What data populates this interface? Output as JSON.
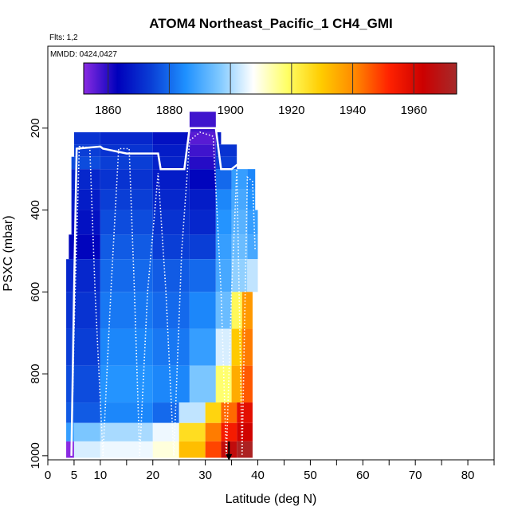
{
  "chart_data": {
    "type": "heatmap",
    "title": "ATOM4 Northeast_Pacific_1 CH4_GMI",
    "flights_label": "Flts: 1,2",
    "mmdd_label": "MMDD: 0424,0427",
    "xlabel": "Latitude (deg N)",
    "ylabel": "PSXC (mbar)",
    "xlim": [
      0,
      85
    ],
    "ylim": [
      1010,
      0
    ],
    "x_ticks": [
      {
        "value": 0,
        "label": "0"
      },
      {
        "value": 5,
        "label": "5"
      },
      {
        "value": 10,
        "label": "10"
      },
      {
        "value": 20,
        "label": "20"
      },
      {
        "value": 30,
        "label": "30"
      },
      {
        "value": 40,
        "label": "40"
      },
      {
        "value": 50,
        "label": "50"
      },
      {
        "value": 60,
        "label": "60"
      },
      {
        "value": 70,
        "label": "70"
      },
      {
        "value": 80,
        "label": "80"
      }
    ],
    "x_minor_ticks": [
      15,
      25,
      35,
      45,
      55,
      65,
      75,
      85
    ],
    "y_ticks": [
      {
        "value": 200,
        "label": "200"
      },
      {
        "value": 400,
        "label": "400"
      },
      {
        "value": 600,
        "label": "600"
      },
      {
        "value": 800,
        "label": "800"
      },
      {
        "value": 1000,
        "label": "1000"
      }
    ],
    "colorbar": {
      "min": 1852,
      "max": 1974,
      "ticks": [
        {
          "value": 1860,
          "label": "1860"
        },
        {
          "value": 1880,
          "label": "1880"
        },
        {
          "value": 1900,
          "label": "1900"
        },
        {
          "value": 1920,
          "label": "1920"
        },
        {
          "value": 1940,
          "label": "1940"
        },
        {
          "value": 1960,
          "label": "1960"
        }
      ],
      "colors": [
        "#8a2be2",
        "#0000bb",
        "#0a3fd6",
        "#1e90ff",
        "#7ec8ff",
        "#ffffff",
        "#ffff66",
        "#ffcc00",
        "#ff8800",
        "#ff2200",
        "#cc0000",
        "#a52a2a"
      ]
    },
    "rows": [
      {
        "p": [
          160,
          210
        ],
        "cells": [
          [
            27,
            32,
            1858
          ]
        ]
      },
      {
        "p": [
          210,
          240
        ],
        "cells": [
          [
            5,
            10,
            1872
          ],
          [
            10,
            20,
            1870
          ],
          [
            20,
            27,
            1866
          ],
          [
            27,
            32,
            1856
          ],
          [
            32,
            33,
            1868
          ]
        ]
      },
      {
        "p": [
          240,
          270
        ],
        "cells": [
          [
            5,
            10,
            1874
          ],
          [
            10,
            20,
            1872
          ],
          [
            20,
            27,
            1868
          ],
          [
            27,
            32,
            1858
          ],
          [
            32,
            36,
            1872
          ]
        ]
      },
      {
        "p": [
          270,
          300
        ],
        "cells": [
          [
            4.5,
            10,
            1876
          ],
          [
            10,
            20,
            1874
          ],
          [
            20,
            27,
            1869
          ],
          [
            27,
            32,
            1860
          ],
          [
            32,
            36,
            1874
          ]
        ]
      },
      {
        "p": [
          300,
          350
        ],
        "cells": [
          [
            4.5,
            10,
            1870
          ],
          [
            10,
            20,
            1872
          ],
          [
            20,
            27,
            1868
          ],
          [
            27,
            32,
            1864
          ],
          [
            32,
            35,
            1880
          ],
          [
            35,
            38,
            1888
          ],
          [
            38,
            39.5,
            1884
          ]
        ]
      },
      {
        "p": [
          350,
          400
        ],
        "cells": [
          [
            4.5,
            10,
            1868
          ],
          [
            10,
            20,
            1874
          ],
          [
            20,
            27,
            1870
          ],
          [
            27,
            32,
            1868
          ],
          [
            32,
            35,
            1884
          ],
          [
            35,
            38,
            1890
          ],
          [
            38,
            39.5,
            1886
          ]
        ]
      },
      {
        "p": [
          400,
          460
        ],
        "cells": [
          [
            4.5,
            10,
            1866
          ],
          [
            10,
            20,
            1876
          ],
          [
            20,
            27,
            1872
          ],
          [
            27,
            32,
            1870
          ],
          [
            32,
            35,
            1886
          ],
          [
            35,
            38,
            1892
          ],
          [
            38,
            40,
            1888
          ]
        ]
      },
      {
        "p": [
          460,
          520
        ],
        "cells": [
          [
            4,
            10,
            1864
          ],
          [
            10,
            20,
            1878
          ],
          [
            20,
            27,
            1874
          ],
          [
            27,
            32,
            1874
          ],
          [
            32,
            35,
            1888
          ],
          [
            35,
            38,
            1894
          ],
          [
            38,
            40,
            1890
          ]
        ]
      },
      {
        "p": [
          520,
          600
        ],
        "cells": [
          [
            3.5,
            10,
            1870
          ],
          [
            10,
            20,
            1880
          ],
          [
            20,
            27,
            1878
          ],
          [
            27,
            32,
            1880
          ],
          [
            32,
            35,
            1890
          ],
          [
            35,
            38,
            1898
          ],
          [
            38,
            40,
            1902
          ]
        ]
      },
      {
        "p": [
          600,
          690
        ],
        "cells": [
          [
            3.5,
            10,
            1872
          ],
          [
            10,
            20,
            1882
          ],
          [
            20,
            27,
            1880
          ],
          [
            27,
            32,
            1884
          ],
          [
            32,
            35,
            1894
          ],
          [
            35,
            37,
            1920
          ],
          [
            37,
            39,
            1938
          ]
        ]
      },
      {
        "p": [
          690,
          780
        ],
        "cells": [
          [
            3.5,
            10,
            1874
          ],
          [
            10,
            20,
            1884
          ],
          [
            20,
            27,
            1882
          ],
          [
            27,
            32,
            1888
          ],
          [
            32,
            35,
            1904
          ],
          [
            35,
            37,
            1930
          ],
          [
            37,
            39,
            1942
          ]
        ]
      },
      {
        "p": [
          780,
          870
        ],
        "cells": [
          [
            3.5,
            10,
            1876
          ],
          [
            10,
            20,
            1886
          ],
          [
            20,
            27,
            1884
          ],
          [
            27,
            32,
            1896
          ],
          [
            32,
            35,
            1918
          ],
          [
            35,
            37,
            1935
          ],
          [
            37,
            39,
            1946
          ]
        ]
      },
      {
        "p": [
          870,
          920
        ],
        "cells": [
          [
            3.5,
            10,
            1878
          ],
          [
            10,
            20,
            1884
          ],
          [
            20,
            25,
            1880
          ],
          [
            25,
            30,
            1902
          ],
          [
            30,
            33,
            1928
          ],
          [
            33,
            36,
            1944
          ],
          [
            36,
            39,
            1958
          ]
        ]
      },
      {
        "p": [
          920,
          965
        ],
        "cells": [
          [
            3.5,
            5,
            1888
          ],
          [
            5,
            10,
            1896
          ],
          [
            10,
            20,
            1900
          ],
          [
            20,
            25,
            1906
          ],
          [
            25,
            30,
            1926
          ],
          [
            30,
            33,
            1942
          ],
          [
            33,
            36,
            1954
          ],
          [
            36,
            39,
            1962
          ]
        ]
      },
      {
        "p": [
          965,
          1005
        ],
        "cells": [
          [
            3.5,
            5,
            1852
          ],
          [
            5,
            10,
            1904
          ],
          [
            10,
            20,
            1906
          ],
          [
            20,
            25,
            1910
          ],
          [
            25,
            30,
            1932
          ],
          [
            30,
            33,
            1948
          ],
          [
            33,
            36,
            1966
          ],
          [
            36,
            39,
            1972
          ]
        ]
      }
    ],
    "flight_tracks": [
      {
        "style": "solid",
        "points": [
          [
            4.5,
            1000
          ],
          [
            5,
            600
          ],
          [
            5.5,
            250
          ],
          [
            10,
            245
          ],
          [
            10.5,
            250
          ],
          [
            15,
            262
          ],
          [
            20,
            262
          ],
          [
            21,
            262
          ],
          [
            21.5,
            300
          ],
          [
            26,
            300
          ],
          [
            27,
            200
          ],
          [
            32,
            200
          ],
          [
            33,
            300
          ],
          [
            35,
            300
          ],
          [
            36,
            290
          ],
          [
            38.5,
            290
          ]
        ]
      },
      {
        "style": "dotted",
        "points": [
          [
            4.5,
            1000
          ],
          [
            5,
            700
          ],
          [
            6,
            245
          ],
          [
            8,
            248
          ],
          [
            9,
            600
          ],
          [
            10.5,
            1000
          ],
          [
            12,
            600
          ],
          [
            13.5,
            250
          ],
          [
            15.5,
            250
          ],
          [
            16.5,
            600
          ],
          [
            17.5,
            1000
          ],
          [
            19,
            600
          ],
          [
            21,
            310
          ],
          [
            22.5,
            600
          ],
          [
            24,
            1000
          ],
          [
            25.5,
            500
          ],
          [
            27,
            230
          ],
          [
            29,
            210
          ],
          [
            31.5,
            220
          ],
          [
            33,
            600
          ],
          [
            34,
            1000
          ],
          [
            35,
            600
          ],
          [
            36,
            300
          ],
          [
            36.5,
            650
          ],
          [
            37,
            1000
          ],
          [
            38,
            320
          ],
          [
            39,
            330
          ],
          [
            39.5,
            500
          ]
        ]
      }
    ],
    "marker": {
      "x": 34.5,
      "p": 1000
    }
  }
}
